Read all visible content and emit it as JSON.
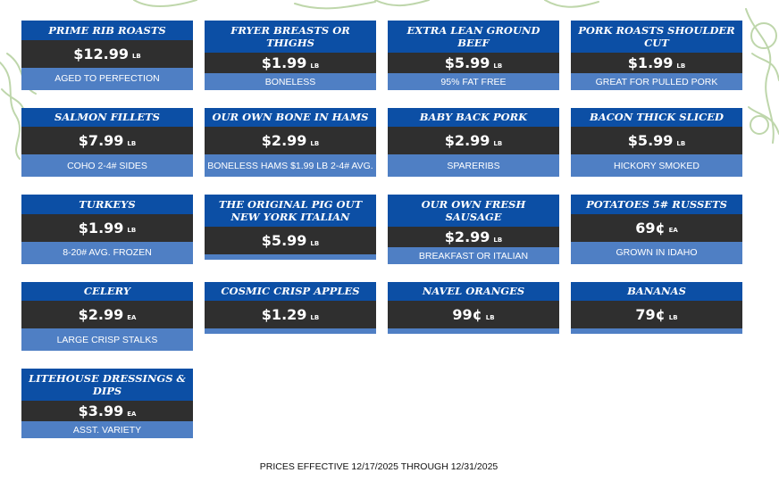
{
  "colors": {
    "title_bg": "#0c4fa5",
    "price_bg": "#2f2f2f",
    "subtitle_bg": "#4f7fc4",
    "decoration": "#a9c98f"
  },
  "items": [
    {
      "name": "PRIME RIB ROASTS",
      "price": "$12.99",
      "unit": "LB",
      "subtitle": "AGED TO PERFECTION"
    },
    {
      "name": "FRYER BREASTS OR THIGHS",
      "price": "$1.99",
      "unit": "LB",
      "subtitle": "BONELESS"
    },
    {
      "name": "EXTRA LEAN GROUND BEEF",
      "price": "$5.99",
      "unit": "LB",
      "subtitle": "95% FAT FREE"
    },
    {
      "name": "PORK ROASTS SHOULDER CUT",
      "price": "$1.99",
      "unit": "LB",
      "subtitle": "GREAT FOR PULLED PORK"
    },
    {
      "name": "SALMON FILLETS",
      "price": "$7.99",
      "unit": "LB",
      "subtitle": "COHO 2-4# SIDES"
    },
    {
      "name": "OUR OWN BONE IN HAMS",
      "price": "$2.99",
      "unit": "LB",
      "subtitle": "BONELESS HAMS $1.99 LB 2-4# AVG."
    },
    {
      "name": "BABY BACK PORK",
      "price": "$2.99",
      "unit": "LB",
      "subtitle": "SPARERIBS"
    },
    {
      "name": "BACON THICK SLICED",
      "price": "$5.99",
      "unit": "LB",
      "subtitle": "HICKORY SMOKED"
    },
    {
      "name": "TURKEYS",
      "price": "$1.99",
      "unit": "LB",
      "subtitle": "8-20# AVG. FROZEN"
    },
    {
      "name": "THE ORIGINAL PIG OUT NEW YORK ITALIAN",
      "price": "$5.99",
      "unit": "LB",
      "subtitle": ""
    },
    {
      "name": "OUR OWN FRESH SAUSAGE",
      "price": "$2.99",
      "unit": "LB",
      "subtitle": "BREAKFAST OR ITALIAN"
    },
    {
      "name": "POTATOES 5# RUSSETS",
      "price": "69¢",
      "unit": "EA",
      "subtitle": "GROWN IN IDAHO"
    },
    {
      "name": "CELERY",
      "price": "$2.99",
      "unit": "EA",
      "subtitle": "LARGE CRISP STALKS"
    },
    {
      "name": "COSMIC CRISP APPLES",
      "price": "$1.29",
      "unit": "LB",
      "subtitle": ""
    },
    {
      "name": "NAVEL ORANGES",
      "price": "99¢",
      "unit": "LB",
      "subtitle": ""
    },
    {
      "name": "BANANAS",
      "price": "79¢",
      "unit": "LB",
      "subtitle": ""
    },
    {
      "name": "LITEHOUSE DRESSINGS & DIPS",
      "price": "$3.99",
      "unit": "EA",
      "subtitle": "ASST. VARIETY"
    }
  ],
  "footer": {
    "text": "PRICES EFFECTIVE 12/17/2025 THROUGH 12/31/2025"
  }
}
